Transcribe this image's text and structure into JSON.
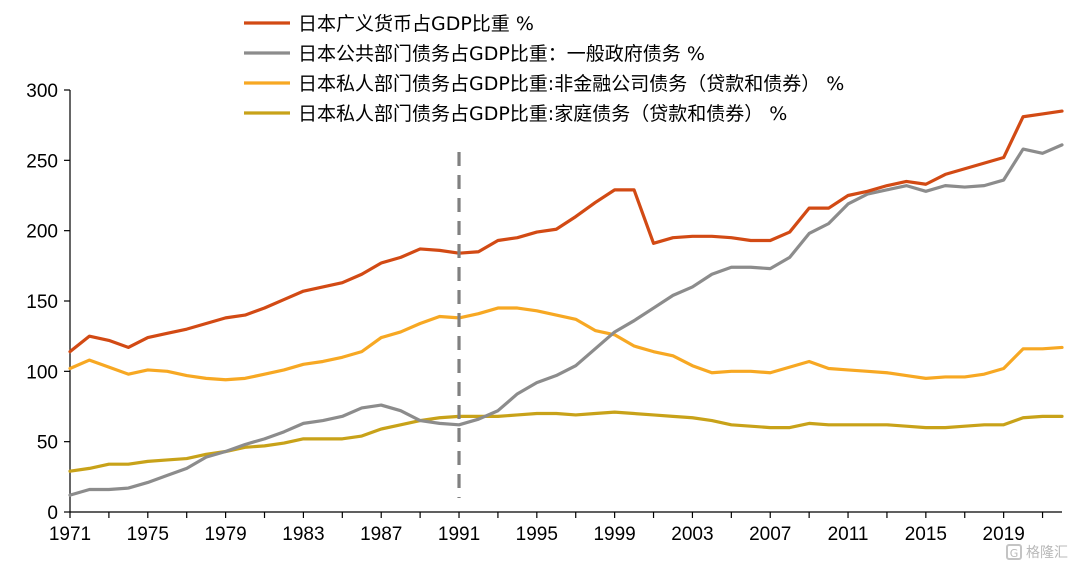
{
  "chart_data": {
    "type": "line",
    "ylim": [
      0,
      300
    ],
    "yticks": [
      0,
      50,
      100,
      150,
      200,
      250,
      300
    ],
    "xlim": [
      1971,
      2022
    ],
    "xticks": [
      1971,
      1975,
      1979,
      1983,
      1987,
      1991,
      1995,
      1999,
      2003,
      2007,
      2011,
      2015,
      2019
    ],
    "vline_x": 1991,
    "legend_position": "top-left",
    "grid": false,
    "x": [
      1971,
      1972,
      1973,
      1974,
      1975,
      1976,
      1977,
      1978,
      1979,
      1980,
      1981,
      1982,
      1983,
      1984,
      1985,
      1986,
      1987,
      1988,
      1989,
      1990,
      1991,
      1992,
      1993,
      1994,
      1995,
      1996,
      1997,
      1998,
      1999,
      2000,
      2001,
      2002,
      2003,
      2004,
      2005,
      2006,
      2007,
      2008,
      2009,
      2010,
      2011,
      2012,
      2013,
      2014,
      2015,
      2016,
      2017,
      2018,
      2019,
      2020,
      2021,
      2022
    ],
    "series": [
      {
        "name": "日本广义货币占GDP比重 %",
        "color": "#D24A14",
        "values": [
          114,
          125,
          122,
          117,
          124,
          127,
          130,
          134,
          138,
          140,
          145,
          151,
          157,
          160,
          163,
          169,
          177,
          181,
          187,
          186,
          184,
          185,
          193,
          195,
          199,
          201,
          210,
          220,
          229,
          229,
          191,
          195,
          196,
          196,
          195,
          193,
          193,
          199,
          216,
          216,
          225,
          228,
          232,
          235,
          233,
          240,
          244,
          248,
          252,
          281,
          283,
          285
        ]
      },
      {
        "name": "日本公共部门债务占GDP比重：一般政府债务 %",
        "color": "#8C8C8C",
        "values": [
          12,
          16,
          16,
          17,
          21,
          26,
          31,
          39,
          43,
          48,
          52,
          57,
          63,
          65,
          68,
          74,
          76,
          72,
          65,
          63,
          62,
          66,
          72,
          84,
          92,
          97,
          104,
          116,
          128,
          136,
          145,
          154,
          160,
          169,
          174,
          174,
          173,
          181,
          198,
          205,
          219,
          226,
          229,
          232,
          228,
          232,
          231,
          232,
          236,
          258,
          255,
          261
        ]
      },
      {
        "name": "日本私人部门债务占GDP比重:非金融公司债务（贷款和债券） %",
        "color": "#F7A823",
        "values": [
          102,
          108,
          103,
          98,
          101,
          100,
          97,
          95,
          94,
          95,
          98,
          101,
          105,
          107,
          110,
          114,
          124,
          128,
          134,
          139,
          138,
          141,
          145,
          145,
          143,
          140,
          137,
          129,
          126,
          118,
          114,
          111,
          104,
          99,
          100,
          100,
          99,
          103,
          107,
          102,
          101,
          100,
          99,
          97,
          95,
          96,
          96,
          98,
          102,
          116,
          116,
          117
        ]
      },
      {
        "name": "日本私人部门债务占GDP比重:家庭债务（贷款和债券） %",
        "color": "#C8A219",
        "values": [
          29,
          31,
          34,
          34,
          36,
          37,
          38,
          41,
          43,
          46,
          47,
          49,
          52,
          52,
          52,
          54,
          59,
          62,
          65,
          67,
          68,
          68,
          68,
          69,
          70,
          70,
          69,
          70,
          71,
          70,
          69,
          68,
          67,
          65,
          62,
          61,
          60,
          60,
          63,
          62,
          62,
          62,
          62,
          61,
          60,
          60,
          61,
          62,
          62,
          67,
          68,
          68
        ]
      }
    ]
  },
  "watermark": {
    "text": "格隆汇",
    "icon": "watermark-logo-icon"
  }
}
